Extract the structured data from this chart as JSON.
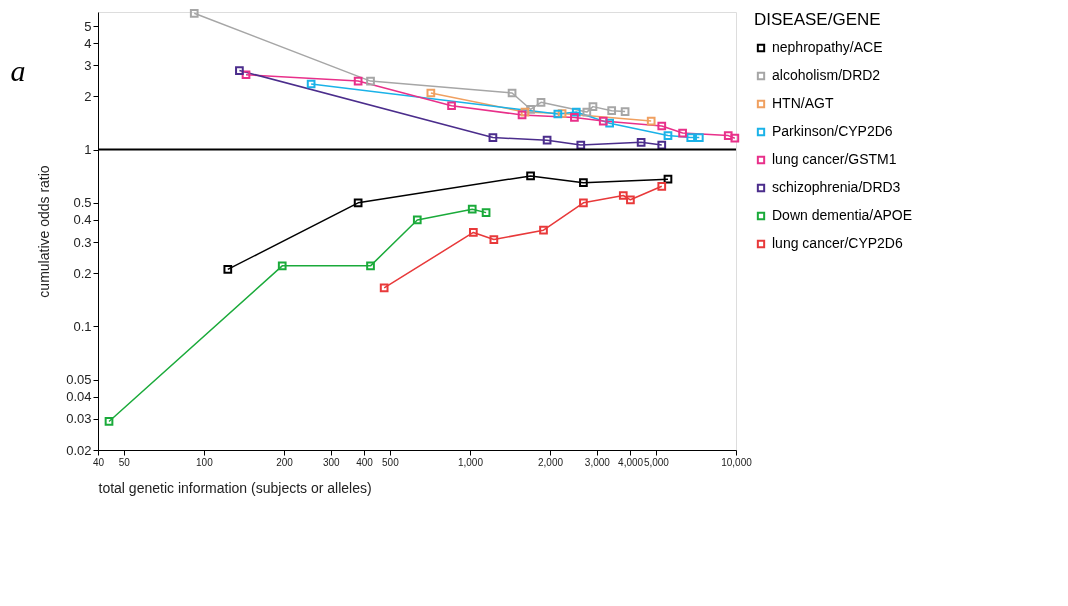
{
  "chart_data": {
    "type": "line",
    "xlabel": "total genetic information (subjects or alleles)",
    "ylabel": "cumulative odds ratio",
    "legend_title": "DISEASE/GENE",
    "legend": "right",
    "marker": "square",
    "log": "xy",
    "grid": false,
    "annotations": [
      "a"
    ],
    "xlim": [
      40,
      10000
    ],
    "xticks": [
      40,
      50,
      100,
      200,
      300,
      400,
      500,
      {
        "value": 1000,
        "label": "1,000"
      },
      {
        "value": 2000,
        "label": "2,000"
      },
      {
        "value": 3000,
        "label": "3,000"
      },
      {
        "value": 4000,
        "label": "4,000"
      },
      {
        "value": 5000,
        "label": "5,000"
      },
      {
        "value": 10000,
        "label": "10,000"
      }
    ],
    "ylim": [
      0.02,
      6
    ],
    "yticks": [
      0.02,
      0.03,
      0.04,
      0.05,
      0.1,
      0.2,
      0.3,
      0.4,
      0.5,
      1,
      2,
      3,
      4,
      5
    ],
    "ref_lines": [
      {
        "axis": "y",
        "value": 1,
        "color": "#000000"
      }
    ],
    "series": [
      {
        "name": "nephropathy/ACE",
        "color": "#000000",
        "x": [
          123,
          380,
          1690,
          2670,
          5550
        ],
        "values": [
          0.21,
          0.5,
          0.71,
          0.65,
          0.68
        ]
      },
      {
        "name": "alcoholism/DRD2",
        "color": "#a6a6a6",
        "x": [
          92,
          423,
          1440,
          1690,
          1850,
          2750,
          2900,
          3410,
          3830
        ],
        "values": [
          5.9,
          2.44,
          2.09,
          1.69,
          1.85,
          1.63,
          1.75,
          1.66,
          1.64
        ]
      },
      {
        "name": "HTN/AGT",
        "color": "#f0a060",
        "x": [
          713,
          1610,
          2220,
          4800
        ],
        "values": [
          2.09,
          1.63,
          1.6,
          1.45
        ]
      },
      {
        "name": "Parkinson/CYP2D6",
        "color": "#1ab2e8",
        "x": [
          253,
          2140,
          2510,
          3350,
          5550,
          6760,
          7280
        ],
        "values": [
          2.35,
          1.59,
          1.63,
          1.41,
          1.2,
          1.17,
          1.17
        ]
      },
      {
        "name": "lung cancer/GSTM1",
        "color": "#e8308a",
        "x": [
          144,
          380,
          853,
          1570,
          2470,
          3170,
          5260,
          6300,
          9350,
          9900
        ],
        "values": [
          2.65,
          2.44,
          1.77,
          1.57,
          1.52,
          1.45,
          1.36,
          1.24,
          1.2,
          1.16
        ]
      },
      {
        "name": "schizophrenia/DRD3",
        "color": "#4b2d8c",
        "x": [
          136,
          1220,
          1950,
          2610,
          4400,
          5260
        ],
        "values": [
          2.8,
          1.17,
          1.13,
          1.06,
          1.1,
          1.06
        ]
      },
      {
        "name": "Down dementia/APOE",
        "color": "#1aaa3a",
        "x": [
          44,
          197,
          423,
          634,
          1020,
          1150
        ],
        "values": [
          0.029,
          0.22,
          0.22,
          0.4,
          0.46,
          0.44
        ]
      },
      {
        "name": "lung cancer/CYP2D6",
        "color": "#e8393a",
        "x": [
          476,
          1030,
          1230,
          1890,
          2670,
          3770,
          4010,
          5260
        ],
        "values": [
          0.165,
          0.34,
          0.31,
          0.35,
          0.5,
          0.55,
          0.52,
          0.62
        ]
      }
    ]
  }
}
